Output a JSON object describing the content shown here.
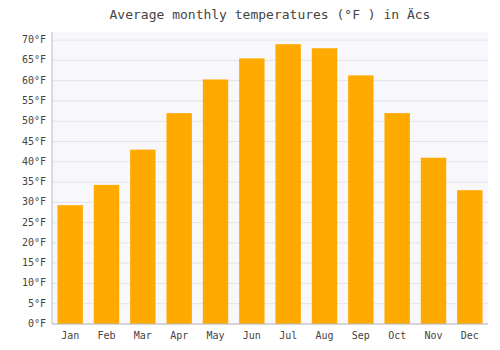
{
  "chart_data": {
    "type": "bar",
    "title": "Average monthly temperatures (°F ) in Äcs",
    "categories": [
      "Jan",
      "Feb",
      "Mar",
      "Apr",
      "May",
      "Jun",
      "Jul",
      "Aug",
      "Sep",
      "Oct",
      "Nov",
      "Dec"
    ],
    "values": [
      29.3,
      34.3,
      43.0,
      52.0,
      60.3,
      65.5,
      69.0,
      68.0,
      61.3,
      52.0,
      41.0,
      33.0
    ],
    "color": "#FFAA00",
    "ylim": [
      0,
      72
    ],
    "yticks": [
      {
        "value": 0,
        "label": "0°F"
      },
      {
        "value": 5,
        "label": "5°F"
      },
      {
        "value": 10,
        "label": "10°F"
      },
      {
        "value": 15,
        "label": "15°F"
      },
      {
        "value": 20,
        "label": "20°F"
      },
      {
        "value": 25,
        "label": "25°F"
      },
      {
        "value": 30,
        "label": "30°F"
      },
      {
        "value": 35,
        "label": "35°F"
      },
      {
        "value": 40,
        "label": "40°F"
      },
      {
        "value": 45,
        "label": "45°F"
      },
      {
        "value": 50,
        "label": "50°F"
      },
      {
        "value": 55,
        "label": "55°F"
      },
      {
        "value": 60,
        "label": "60°F"
      },
      {
        "value": 65,
        "label": "65°F"
      },
      {
        "value": 70,
        "label": "70°F"
      }
    ],
    "grid": true
  }
}
